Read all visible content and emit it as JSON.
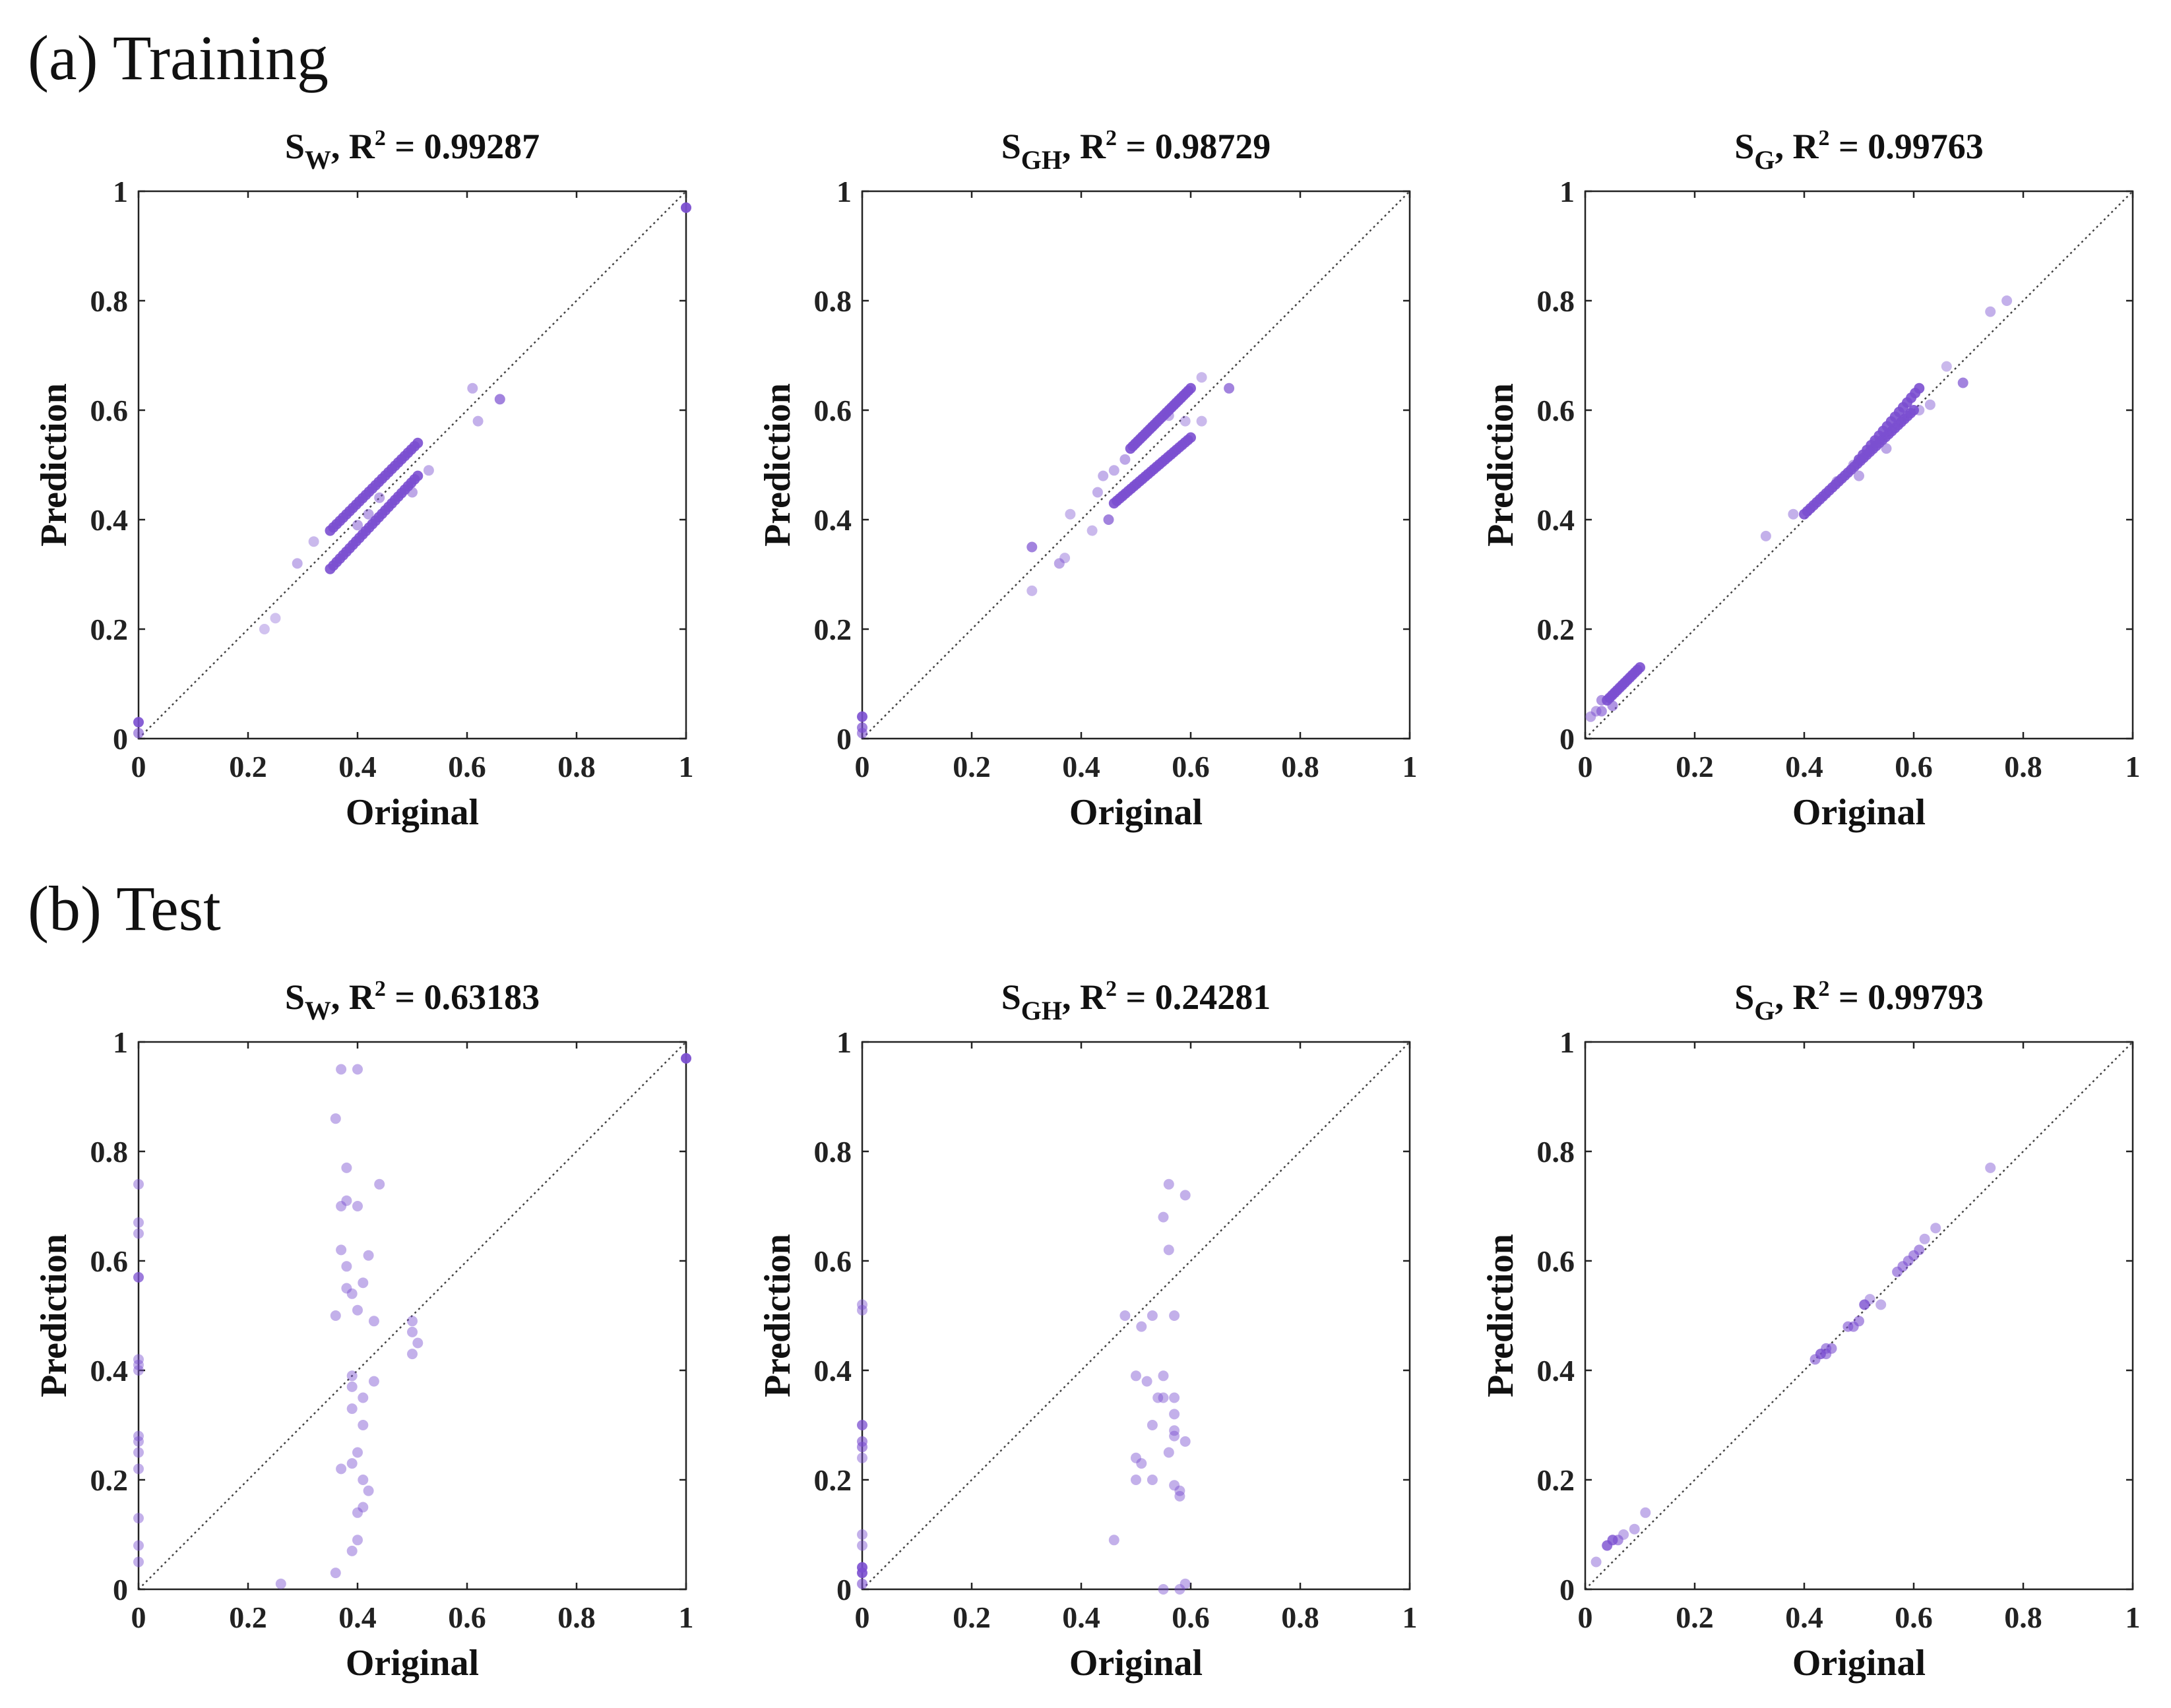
{
  "figure": {
    "sections": [
      {
        "label": "(a) Training"
      },
      {
        "label": "(b) Test"
      }
    ]
  },
  "colors": {
    "point": "#7b4fd0",
    "frame": "#222222",
    "text": "#111111"
  },
  "chart_data": [
    {
      "type": "scatter",
      "section": "(a) Training",
      "var": "S",
      "sub": "W",
      "r2_text": ", R",
      "r2_sup": "2",
      "r2_value": " = 0.99287",
      "xlabel": "Original",
      "ylabel": "Prediction",
      "xlim": [
        0,
        1
      ],
      "ylim": [
        0,
        1
      ],
      "xticks": [
        "0",
        "0.2",
        "0.4",
        "0.6",
        "0.8",
        "1"
      ],
      "yticks": [
        "0",
        "0.2",
        "0.4",
        "0.6",
        "0.8",
        "1"
      ],
      "clusters": [
        {
          "from": [
            0.35,
            0.38
          ],
          "to": [
            0.51,
            0.54
          ],
          "n": 28,
          "opacity": 0.9
        },
        {
          "from": [
            0.35,
            0.31
          ],
          "to": [
            0.51,
            0.48
          ],
          "n": 28,
          "opacity": 0.9
        }
      ],
      "points": [
        [
          0,
          0.03,
          0.9
        ],
        [
          0,
          0.01,
          0.6
        ],
        [
          1,
          0.97,
          0.95
        ],
        [
          0.23,
          0.2,
          0.35
        ],
        [
          0.25,
          0.22,
          0.35
        ],
        [
          0.29,
          0.32,
          0.45
        ],
        [
          0.32,
          0.36,
          0.4
        ],
        [
          0.4,
          0.39,
          0.5
        ],
        [
          0.42,
          0.41,
          0.5
        ],
        [
          0.44,
          0.44,
          0.5
        ],
        [
          0.5,
          0.45,
          0.5
        ],
        [
          0.53,
          0.49,
          0.45
        ],
        [
          0.61,
          0.64,
          0.45
        ],
        [
          0.62,
          0.58,
          0.45
        ],
        [
          0.66,
          0.62,
          0.7
        ]
      ]
    },
    {
      "type": "scatter",
      "section": "(a) Training",
      "var": "S",
      "sub": "GH",
      "r2_text": ", R",
      "r2_sup": "2",
      "r2_value": " = 0.98729",
      "xlabel": "Original",
      "ylabel": "Prediction",
      "xlim": [
        0,
        1
      ],
      "ylim": [
        0,
        1
      ],
      "xticks": [
        "0",
        "0.2",
        "0.4",
        "0.6",
        "0.8",
        "1"
      ],
      "yticks": [
        "0",
        "0.2",
        "0.4",
        "0.6",
        "0.8",
        "1"
      ],
      "clusters": [
        {
          "from": [
            0.49,
            0.53
          ],
          "to": [
            0.6,
            0.64
          ],
          "n": 26,
          "opacity": 0.9
        },
        {
          "from": [
            0.46,
            0.43
          ],
          "to": [
            0.6,
            0.55
          ],
          "n": 28,
          "opacity": 0.9
        }
      ],
      "points": [
        [
          0,
          0.04,
          0.9
        ],
        [
          0,
          0.02,
          0.7
        ],
        [
          0,
          0.01,
          0.6
        ],
        [
          0.31,
          0.35,
          0.7
        ],
        [
          0.31,
          0.27,
          0.4
        ],
        [
          0.36,
          0.32,
          0.5
        ],
        [
          0.37,
          0.33,
          0.4
        ],
        [
          0.38,
          0.41,
          0.4
        ],
        [
          0.42,
          0.38,
          0.4
        ],
        [
          0.43,
          0.45,
          0.45
        ],
        [
          0.44,
          0.48,
          0.45
        ],
        [
          0.46,
          0.49,
          0.45
        ],
        [
          0.48,
          0.51,
          0.5
        ],
        [
          0.45,
          0.4,
          0.7
        ],
        [
          0.53,
          0.57,
          0.4
        ],
        [
          0.56,
          0.59,
          0.45
        ],
        [
          0.59,
          0.58,
          0.4
        ],
        [
          0.62,
          0.58,
          0.4
        ],
        [
          0.62,
          0.66,
          0.4
        ],
        [
          0.67,
          0.64,
          0.7
        ]
      ]
    },
    {
      "type": "scatter",
      "section": "(a) Training",
      "var": "S",
      "sub": "G",
      "r2_text": ", R",
      "r2_sup": "2",
      "r2_value": " = 0.99763",
      "xlabel": "Original",
      "ylabel": "Prediction",
      "xlim": [
        0,
        1
      ],
      "ylim": [
        0,
        1
      ],
      "xticks": [
        "0",
        "0.2",
        "0.4",
        "0.6",
        "0.8",
        "1"
      ],
      "yticks": [
        "0",
        "0.2",
        "0.4",
        "0.6",
        "0.8",
        "1"
      ],
      "clusters": [
        {
          "from": [
            0.04,
            0.07
          ],
          "to": [
            0.1,
            0.13
          ],
          "n": 14,
          "opacity": 0.9
        },
        {
          "from": [
            0.4,
            0.41
          ],
          "to": [
            0.6,
            0.6
          ],
          "n": 36,
          "opacity": 0.9
        },
        {
          "from": [
            0.5,
            0.51
          ],
          "to": [
            0.61,
            0.64
          ],
          "n": 16,
          "opacity": 0.9
        }
      ],
      "points": [
        [
          0.01,
          0.04,
          0.5
        ],
        [
          0.02,
          0.05,
          0.5
        ],
        [
          0.03,
          0.05,
          0.6
        ],
        [
          0.03,
          0.07,
          0.6
        ],
        [
          0.05,
          0.06,
          0.6
        ],
        [
          0.33,
          0.37,
          0.45
        ],
        [
          0.38,
          0.41,
          0.45
        ],
        [
          0.46,
          0.47,
          0.5
        ],
        [
          0.49,
          0.5,
          0.5
        ],
        [
          0.5,
          0.48,
          0.5
        ],
        [
          0.53,
          0.54,
          0.5
        ],
        [
          0.55,
          0.53,
          0.5
        ],
        [
          0.61,
          0.6,
          0.45
        ],
        [
          0.63,
          0.61,
          0.45
        ],
        [
          0.66,
          0.68,
          0.4
        ],
        [
          0.69,
          0.65,
          0.7
        ],
        [
          0.74,
          0.78,
          0.45
        ],
        [
          0.77,
          0.8,
          0.45
        ]
      ]
    },
    {
      "type": "scatter",
      "section": "(b) Test",
      "var": "S",
      "sub": "W",
      "r2_text": ", R",
      "r2_sup": "2",
      "r2_value": " = 0.63183",
      "xlabel": "Original",
      "ylabel": "Prediction",
      "xlim": [
        0,
        1
      ],
      "ylim": [
        0,
        1
      ],
      "xticks": [
        "0",
        "0.2",
        "0.4",
        "0.6",
        "0.8",
        "1"
      ],
      "yticks": [
        "0",
        "0.2",
        "0.4",
        "0.6",
        "0.8",
        "1"
      ],
      "clusters": [],
      "points": [
        [
          0,
          0.74,
          0.45
        ],
        [
          0,
          0.67,
          0.45
        ],
        [
          0,
          0.65,
          0.45
        ],
        [
          0,
          0.57,
          0.75
        ],
        [
          0,
          0.42,
          0.45
        ],
        [
          0,
          0.41,
          0.45
        ],
        [
          0,
          0.4,
          0.45
        ],
        [
          0,
          0.28,
          0.45
        ],
        [
          0,
          0.27,
          0.45
        ],
        [
          0,
          0.25,
          0.45
        ],
        [
          0,
          0.22,
          0.45
        ],
        [
          0,
          0.13,
          0.45
        ],
        [
          0,
          0.08,
          0.45
        ],
        [
          0,
          0.05,
          0.45
        ],
        [
          1,
          0.97,
          0.95
        ],
        [
          0.26,
          0.01,
          0.45
        ],
        [
          0.36,
          0.03,
          0.45
        ],
        [
          0.37,
          0.95,
          0.45
        ],
        [
          0.4,
          0.95,
          0.45
        ],
        [
          0.36,
          0.86,
          0.45
        ],
        [
          0.38,
          0.77,
          0.45
        ],
        [
          0.37,
          0.7,
          0.45
        ],
        [
          0.38,
          0.71,
          0.45
        ],
        [
          0.4,
          0.7,
          0.45
        ],
        [
          0.44,
          0.74,
          0.45
        ],
        [
          0.37,
          0.62,
          0.45
        ],
        [
          0.38,
          0.59,
          0.45
        ],
        [
          0.42,
          0.61,
          0.45
        ],
        [
          0.38,
          0.55,
          0.45
        ],
        [
          0.39,
          0.54,
          0.45
        ],
        [
          0.41,
          0.56,
          0.45
        ],
        [
          0.36,
          0.5,
          0.45
        ],
        [
          0.4,
          0.51,
          0.45
        ],
        [
          0.43,
          0.49,
          0.45
        ],
        [
          0.39,
          0.39,
          0.45
        ],
        [
          0.39,
          0.37,
          0.45
        ],
        [
          0.43,
          0.38,
          0.45
        ],
        [
          0.41,
          0.35,
          0.45
        ],
        [
          0.39,
          0.33,
          0.45
        ],
        [
          0.41,
          0.3,
          0.45
        ],
        [
          0.37,
          0.22,
          0.45
        ],
        [
          0.39,
          0.23,
          0.45
        ],
        [
          0.4,
          0.25,
          0.45
        ],
        [
          0.41,
          0.2,
          0.45
        ],
        [
          0.42,
          0.18,
          0.45
        ],
        [
          0.41,
          0.15,
          0.45
        ],
        [
          0.4,
          0.14,
          0.45
        ],
        [
          0.4,
          0.09,
          0.45
        ],
        [
          0.39,
          0.07,
          0.45
        ],
        [
          0.5,
          0.49,
          0.45
        ],
        [
          0.5,
          0.47,
          0.45
        ],
        [
          0.51,
          0.45,
          0.45
        ],
        [
          0.5,
          0.43,
          0.45
        ]
      ]
    },
    {
      "type": "scatter",
      "section": "(b) Test",
      "var": "S",
      "sub": "GH",
      "r2_text": ", R",
      "r2_sup": "2",
      "r2_value": " = 0.24281",
      "xlabel": "Original",
      "ylabel": "Prediction",
      "xlim": [
        0,
        1
      ],
      "ylim": [
        0,
        1
      ],
      "xticks": [
        "0",
        "0.2",
        "0.4",
        "0.6",
        "0.8",
        "1"
      ],
      "yticks": [
        "0",
        "0.2",
        "0.4",
        "0.6",
        "0.8",
        "1"
      ],
      "clusters": [],
      "points": [
        [
          0,
          0.52,
          0.45
        ],
        [
          0,
          0.51,
          0.45
        ],
        [
          0,
          0.3,
          0.75
        ],
        [
          0,
          0.27,
          0.6
        ],
        [
          0,
          0.26,
          0.6
        ],
        [
          0,
          0.24,
          0.45
        ],
        [
          0,
          0.1,
          0.45
        ],
        [
          0,
          0.08,
          0.45
        ],
        [
          0,
          0.04,
          0.9
        ],
        [
          0,
          0.03,
          0.9
        ],
        [
          0,
          0.01,
          0.6
        ],
        [
          0.46,
          0.09,
          0.45
        ],
        [
          0.48,
          0.5,
          0.45
        ],
        [
          0.51,
          0.48,
          0.45
        ],
        [
          0.53,
          0.5,
          0.45
        ],
        [
          0.57,
          0.5,
          0.45
        ],
        [
          0.55,
          0.68,
          0.45
        ],
        [
          0.56,
          0.74,
          0.45
        ],
        [
          0.59,
          0.72,
          0.45
        ],
        [
          0.56,
          0.62,
          0.45
        ],
        [
          0.5,
          0.39,
          0.45
        ],
        [
          0.52,
          0.38,
          0.45
        ],
        [
          0.55,
          0.39,
          0.45
        ],
        [
          0.54,
          0.35,
          0.45
        ],
        [
          0.55,
          0.35,
          0.45
        ],
        [
          0.57,
          0.35,
          0.45
        ],
        [
          0.57,
          0.32,
          0.45
        ],
        [
          0.53,
          0.3,
          0.45
        ],
        [
          0.57,
          0.28,
          0.45
        ],
        [
          0.57,
          0.29,
          0.45
        ],
        [
          0.59,
          0.27,
          0.45
        ],
        [
          0.56,
          0.25,
          0.45
        ],
        [
          0.5,
          0.24,
          0.45
        ],
        [
          0.51,
          0.23,
          0.45
        ],
        [
          0.5,
          0.2,
          0.45
        ],
        [
          0.53,
          0.2,
          0.45
        ],
        [
          0.57,
          0.19,
          0.45
        ],
        [
          0.58,
          0.17,
          0.45
        ],
        [
          0.58,
          0.18,
          0.45
        ],
        [
          0.55,
          0,
          0.45
        ],
        [
          0.59,
          0.01,
          0.45
        ],
        [
          0.58,
          0,
          0.45
        ]
      ]
    },
    {
      "type": "scatter",
      "section": "(b) Test",
      "var": "S",
      "sub": "G",
      "r2_text": ", R",
      "r2_sup": "2",
      "r2_value": " = 0.99793",
      "xlabel": "Original",
      "ylabel": "Prediction",
      "xlim": [
        0,
        1
      ],
      "ylim": [
        0,
        1
      ],
      "xticks": [
        "0",
        "0.2",
        "0.4",
        "0.6",
        "0.8",
        "1"
      ],
      "yticks": [
        "0",
        "0.2",
        "0.4",
        "0.6",
        "0.8",
        "1"
      ],
      "clusters": [],
      "points": [
        [
          0.02,
          0.05,
          0.45
        ],
        [
          0.04,
          0.08,
          0.8
        ],
        [
          0.05,
          0.09,
          0.8
        ],
        [
          0.06,
          0.09,
          0.6
        ],
        [
          0.07,
          0.1,
          0.45
        ],
        [
          0.09,
          0.11,
          0.45
        ],
        [
          0.11,
          0.14,
          0.45
        ],
        [
          0.42,
          0.42,
          0.6
        ],
        [
          0.43,
          0.43,
          0.8
        ],
        [
          0.44,
          0.43,
          0.6
        ],
        [
          0.44,
          0.44,
          0.6
        ],
        [
          0.45,
          0.44,
          0.6
        ],
        [
          0.48,
          0.48,
          0.6
        ],
        [
          0.49,
          0.48,
          0.6
        ],
        [
          0.5,
          0.49,
          0.6
        ],
        [
          0.51,
          0.52,
          0.8
        ],
        [
          0.52,
          0.53,
          0.45
        ],
        [
          0.54,
          0.52,
          0.45
        ],
        [
          0.57,
          0.58,
          0.6
        ],
        [
          0.58,
          0.59,
          0.6
        ],
        [
          0.59,
          0.6,
          0.6
        ],
        [
          0.6,
          0.61,
          0.6
        ],
        [
          0.61,
          0.62,
          0.6
        ],
        [
          0.62,
          0.64,
          0.45
        ],
        [
          0.64,
          0.66,
          0.45
        ],
        [
          0.74,
          0.77,
          0.45
        ]
      ]
    }
  ]
}
